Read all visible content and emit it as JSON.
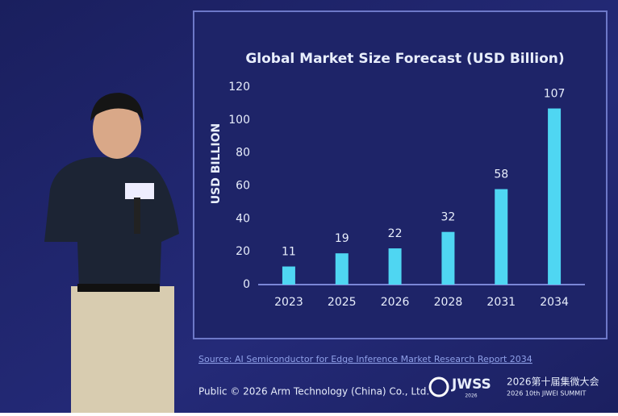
{
  "chart_data": {
    "type": "bar",
    "title": "Global Market Size Forecast (USD Billion)",
    "y_label": "USD BILLION",
    "categories": [
      "2023",
      "2025",
      "2026",
      "2028",
      "2031",
      "2034"
    ],
    "values": [
      11,
      19,
      22,
      32,
      58,
      107
    ],
    "color": "#4fd6f2",
    "ylim": [
      0,
      120
    ],
    "yticks": [
      0,
      20,
      40,
      60,
      80,
      100,
      120
    ],
    "grid": false
  },
  "slide": {
    "source": "Source: AI Semiconductor for Edge Inference Market Research Report 2034",
    "footer": "Public © 2026 Arm Technology (China) Co., Ltd."
  },
  "event": {
    "logo": "JWSS",
    "logo_year": "2026",
    "name_cn": "2026第十届集微大会",
    "name_en": "2026 10th JIWEI SUMMIT"
  }
}
